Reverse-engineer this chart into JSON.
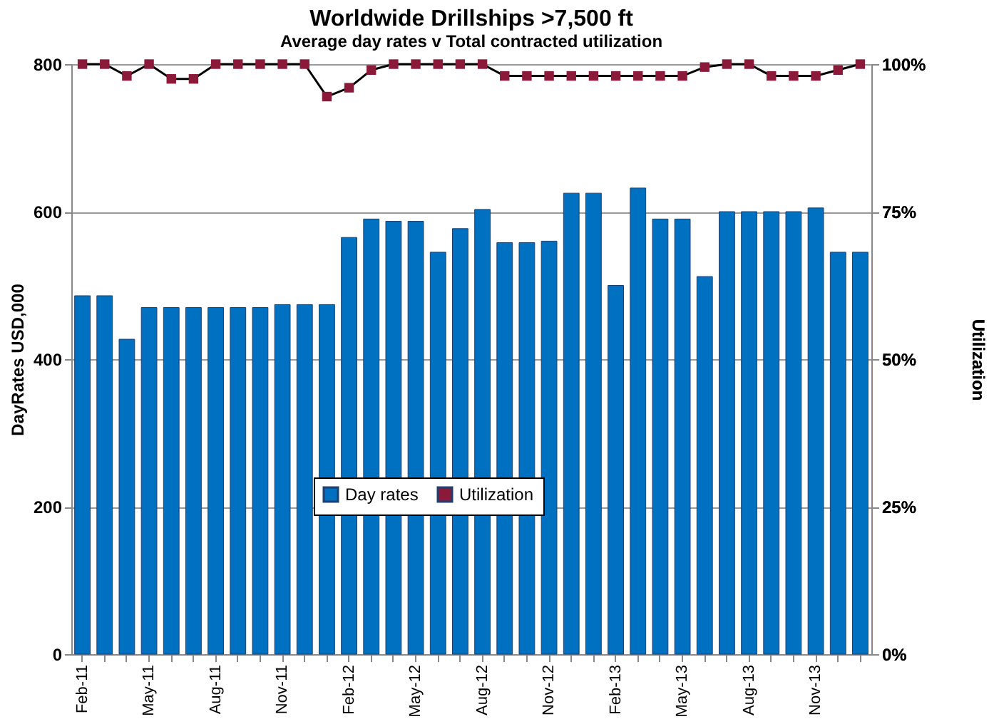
{
  "chart_data": {
    "type": "bar",
    "title": "Worldwide Drillships >7,500 ft",
    "subtitle": "Average day rates v Total contracted utilization",
    "ylabel": "DayRates USD,000",
    "y2label": "Utilization",
    "categories": [
      "Feb-11",
      null,
      null,
      "May-11",
      null,
      null,
      "Aug-11",
      null,
      null,
      "Nov-11",
      null,
      null,
      "Feb-12",
      null,
      null,
      "May-12",
      null,
      null,
      "Aug-12",
      null,
      null,
      "Nov-12",
      null,
      null,
      "Feb-13",
      null,
      null,
      "May-13",
      null,
      null,
      "Aug-13",
      null,
      null,
      "Nov-13",
      null,
      null
    ],
    "series": [
      {
        "name": "Day rates",
        "color": "#0070c0",
        "values": [
          486,
          486,
          427,
          470,
          470,
          470,
          470,
          470,
          470,
          474,
          474,
          474,
          565,
          590,
          587,
          587,
          545,
          577,
          603,
          558,
          558,
          560,
          625,
          625,
          500,
          632,
          590,
          590,
          512,
          600,
          600,
          600,
          600,
          605,
          545,
          545
        ]
      },
      {
        "name": "Utilization",
        "type": "line",
        "axis": "y2",
        "color": "#8b1a3a",
        "marker": "square",
        "line_style": "solid",
        "values": [
          100,
          100,
          98,
          100,
          97.5,
          97.5,
          100,
          100,
          100,
          100,
          100,
          94.5,
          96,
          99,
          100,
          100,
          100,
          100,
          100,
          98,
          98,
          98,
          98,
          98,
          98,
          98,
          98,
          98,
          99.5,
          100,
          100,
          98,
          98,
          98,
          99,
          100
        ]
      }
    ],
    "ylim": [
      0,
      800
    ],
    "yticks": [
      0,
      200,
      400,
      600,
      800
    ],
    "y2lim": [
      0,
      100
    ],
    "y2ticks": [
      {
        "value": 0,
        "label": "0%"
      },
      {
        "value": 25,
        "label": "25%"
      },
      {
        "value": 50,
        "label": "50%"
      },
      {
        "value": 75,
        "label": "75%"
      },
      {
        "value": 100,
        "label": "100%"
      }
    ],
    "grid": "y",
    "legend": "bottom"
  }
}
